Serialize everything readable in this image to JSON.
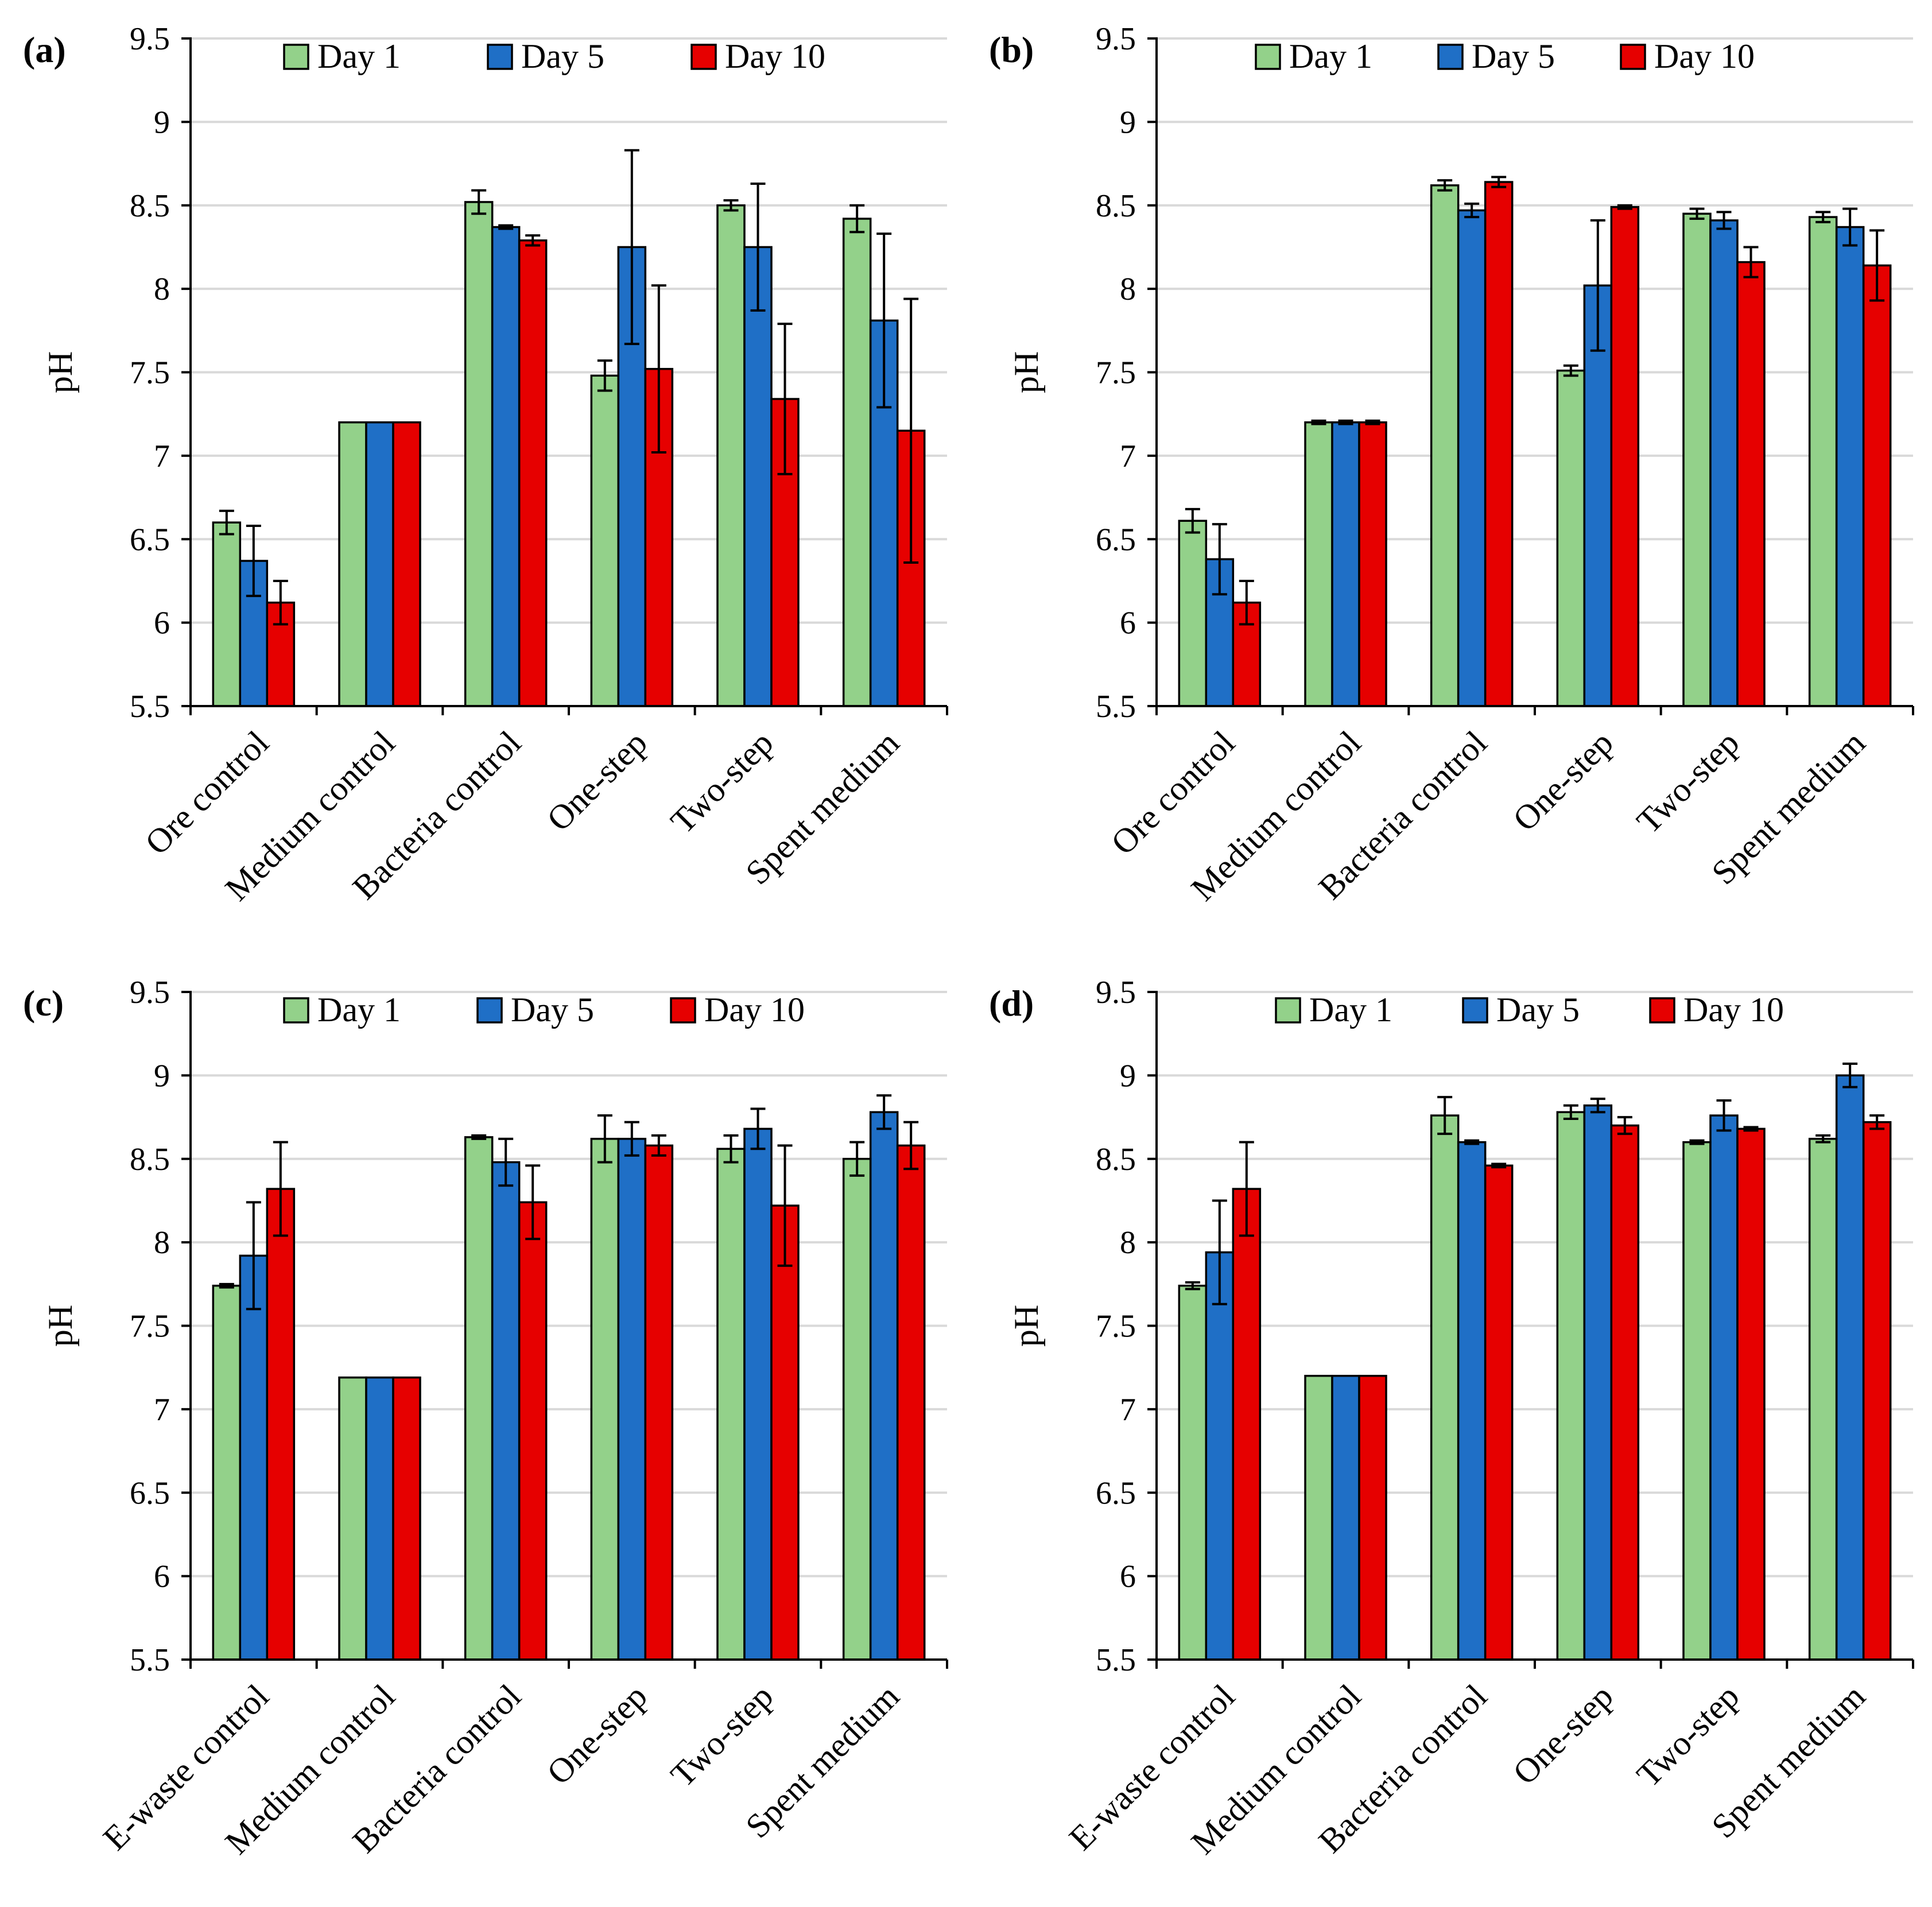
{
  "colors": {
    "Day 1": "#93d18a",
    "Day 5": "#1f6fc6",
    "Day 10": "#e60000",
    "grid": "#d9d9d9",
    "axis": "#000000"
  },
  "chart_data": [
    {
      "panel": "(a)",
      "type": "bar",
      "ylabel": "pH",
      "xlabel": "",
      "ylim": [
        5.5,
        9.5
      ],
      "yticks": [
        "5.5",
        "6",
        "6.5",
        "7",
        "7.5",
        "8",
        "8.5",
        "9",
        "9.5"
      ],
      "grid": true,
      "legend_position": "top",
      "categories": [
        "Ore control",
        "Medium control",
        "Bacteria control",
        "One-step",
        "Two-step",
        "Spent medium"
      ],
      "series": [
        {
          "name": "Day 1",
          "values": [
            6.6,
            7.2,
            8.52,
            7.48,
            8.5,
            8.42
          ],
          "errors": [
            0.07,
            0.0,
            0.07,
            0.09,
            0.03,
            0.08
          ]
        },
        {
          "name": "Day 5",
          "values": [
            6.37,
            7.2,
            8.37,
            8.25,
            8.25,
            7.81
          ],
          "errors": [
            0.21,
            0.0,
            0.01,
            0.58,
            0.38,
            0.52
          ]
        },
        {
          "name": "Day 10",
          "values": [
            6.12,
            7.2,
            8.29,
            7.52,
            7.34,
            7.15
          ],
          "errors": [
            0.13,
            0.0,
            0.03,
            0.5,
            0.45,
            0.79
          ]
        }
      ]
    },
    {
      "panel": "(b)",
      "type": "bar",
      "ylabel": "pH",
      "xlabel": "",
      "ylim": [
        5.5,
        9.5
      ],
      "yticks": [
        "5.5",
        "6",
        "6.5",
        "7",
        "7.5",
        "8",
        "8.5",
        "9",
        "9.5"
      ],
      "grid": true,
      "legend_position": "top",
      "categories": [
        "Ore control",
        "Medium control",
        "Bacteria control",
        "One-step",
        "Two-step",
        "Spent medium"
      ],
      "series": [
        {
          "name": "Day 1",
          "values": [
            6.61,
            7.2,
            8.62,
            7.51,
            8.45,
            8.43
          ],
          "errors": [
            0.07,
            0.01,
            0.03,
            0.03,
            0.03,
            0.03
          ]
        },
        {
          "name": "Day 5",
          "values": [
            6.38,
            7.2,
            8.47,
            8.02,
            8.41,
            8.37
          ],
          "errors": [
            0.21,
            0.01,
            0.04,
            0.39,
            0.05,
            0.11
          ]
        },
        {
          "name": "Day 10",
          "values": [
            6.12,
            7.2,
            8.64,
            8.49,
            8.16,
            8.14
          ],
          "errors": [
            0.13,
            0.01,
            0.03,
            0.01,
            0.09,
            0.21
          ]
        }
      ]
    },
    {
      "panel": "(c)",
      "type": "bar",
      "ylabel": "pH",
      "xlabel": "",
      "ylim": [
        5.5,
        9.5
      ],
      "yticks": [
        "5.5",
        "6",
        "6.5",
        "7",
        "7.5",
        "8",
        "8.5",
        "9",
        "9.5"
      ],
      "grid": true,
      "legend_position": "top",
      "categories": [
        "E-waste control",
        "Medium control",
        "Bacteria control",
        "One-step",
        "Two-step",
        "Spent medium"
      ],
      "series": [
        {
          "name": "Day 1",
          "values": [
            7.74,
            7.19,
            8.63,
            8.62,
            8.56,
            8.5
          ],
          "errors": [
            0.01,
            0.0,
            0.01,
            0.14,
            0.08,
            0.1
          ]
        },
        {
          "name": "Day 5",
          "values": [
            7.92,
            7.19,
            8.48,
            8.62,
            8.68,
            8.78
          ],
          "errors": [
            0.32,
            0.0,
            0.14,
            0.1,
            0.12,
            0.1
          ]
        },
        {
          "name": "Day 10",
          "values": [
            8.32,
            7.19,
            8.24,
            8.58,
            8.22,
            8.58
          ],
          "errors": [
            0.28,
            0.0,
            0.22,
            0.06,
            0.36,
            0.14
          ]
        }
      ]
    },
    {
      "panel": "(d)",
      "type": "bar",
      "ylabel": "pH",
      "xlabel": "",
      "ylim": [
        5.5,
        9.5
      ],
      "yticks": [
        "5.5",
        "6",
        "6.5",
        "7",
        "7.5",
        "8",
        "8.5",
        "9",
        "9.5"
      ],
      "grid": true,
      "legend_position": "top",
      "categories": [
        "E-waste control",
        "Medium control",
        "Bacteria control",
        "One-step",
        "Two-step",
        "Spent medium"
      ],
      "series": [
        {
          "name": "Day 1",
          "values": [
            7.74,
            7.2,
            8.76,
            8.78,
            8.6,
            8.62
          ],
          "errors": [
            0.02,
            0.0,
            0.11,
            0.04,
            0.01,
            0.02
          ]
        },
        {
          "name": "Day 5",
          "values": [
            7.94,
            7.2,
            8.6,
            8.82,
            8.76,
            9.0
          ],
          "errors": [
            0.31,
            0.0,
            0.01,
            0.04,
            0.09,
            0.07
          ]
        },
        {
          "name": "Day 10",
          "values": [
            8.32,
            7.2,
            8.46,
            8.7,
            8.68,
            8.72
          ],
          "errors": [
            0.28,
            0.0,
            0.01,
            0.05,
            0.01,
            0.04
          ]
        }
      ]
    }
  ]
}
